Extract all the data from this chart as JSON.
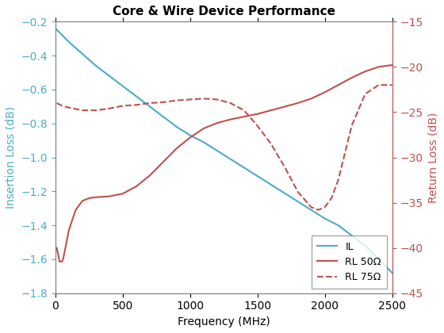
{
  "title": "Core & Wire Device Performance",
  "xlabel": "Frequency (MHz)",
  "ylabel_left": "Insertion Loss (dB)",
  "ylabel_right": "Return Loss (dB)",
  "xlim": [
    0,
    2500
  ],
  "ylim_left": [
    -1.8,
    -0.2
  ],
  "ylim_right": [
    -45,
    -15
  ],
  "left_color": "#4bacc6",
  "right_color": "#c0504d",
  "legend_labels": [
    "IL",
    "RL 50Ω",
    "RL 75Ω"
  ],
  "xticks": [
    0,
    500,
    1000,
    1500,
    2000,
    2500
  ],
  "yticks_left": [
    -0.2,
    -0.4,
    -0.6,
    -0.8,
    -1.0,
    -1.2,
    -1.4,
    -1.6,
    -1.8
  ],
  "yticks_right": [
    -15,
    -20,
    -25,
    -30,
    -35,
    -40,
    -45
  ],
  "il_x": [
    0,
    50,
    100,
    200,
    300,
    400,
    500,
    600,
    700,
    800,
    900,
    1000,
    1100,
    1200,
    1300,
    1400,
    1500,
    1600,
    1700,
    1800,
    1900,
    2000,
    2100,
    2200,
    2300,
    2400,
    2500
  ],
  "il_y": [
    -0.24,
    -0.28,
    -0.32,
    -0.39,
    -0.46,
    -0.52,
    -0.58,
    -0.64,
    -0.7,
    -0.76,
    -0.82,
    -0.87,
    -0.91,
    -0.96,
    -1.01,
    -1.06,
    -1.11,
    -1.16,
    -1.21,
    -1.26,
    -1.31,
    -1.36,
    -1.4,
    -1.46,
    -1.52,
    -1.6,
    -1.68
  ],
  "rl50_x": [
    10,
    30,
    50,
    60,
    80,
    100,
    150,
    200,
    250,
    300,
    400,
    500,
    600,
    700,
    800,
    900,
    1000,
    1100,
    1200,
    1300,
    1400,
    1500,
    1600,
    1700,
    1800,
    1900,
    2000,
    2100,
    2200,
    2300,
    2400,
    2500
  ],
  "rl50_y": [
    -40.0,
    -41.5,
    -41.5,
    -41.0,
    -39.5,
    -38.0,
    -35.8,
    -34.8,
    -34.5,
    -34.4,
    -34.3,
    -34.0,
    -33.2,
    -32.0,
    -30.5,
    -29.0,
    -27.8,
    -26.8,
    -26.2,
    -25.8,
    -25.5,
    -25.2,
    -24.8,
    -24.4,
    -24.0,
    -23.5,
    -22.8,
    -22.0,
    -21.2,
    -20.5,
    -20.0,
    -19.8
  ],
  "rl75_x": [
    10,
    50,
    100,
    200,
    300,
    400,
    500,
    600,
    700,
    800,
    900,
    1000,
    1100,
    1200,
    1300,
    1400,
    1500,
    1600,
    1700,
    1800,
    1900,
    1950,
    2000,
    2050,
    2100,
    2150,
    2200,
    2300,
    2400,
    2500
  ],
  "rl75_y": [
    -24.0,
    -24.3,
    -24.5,
    -24.8,
    -24.8,
    -24.6,
    -24.3,
    -24.2,
    -24.0,
    -23.9,
    -23.7,
    -23.6,
    -23.5,
    -23.6,
    -24.0,
    -24.8,
    -26.5,
    -28.5,
    -31.0,
    -33.8,
    -35.5,
    -35.8,
    -35.5,
    -34.5,
    -32.5,
    -29.5,
    -26.5,
    -23.0,
    -22.0,
    -22.0
  ]
}
